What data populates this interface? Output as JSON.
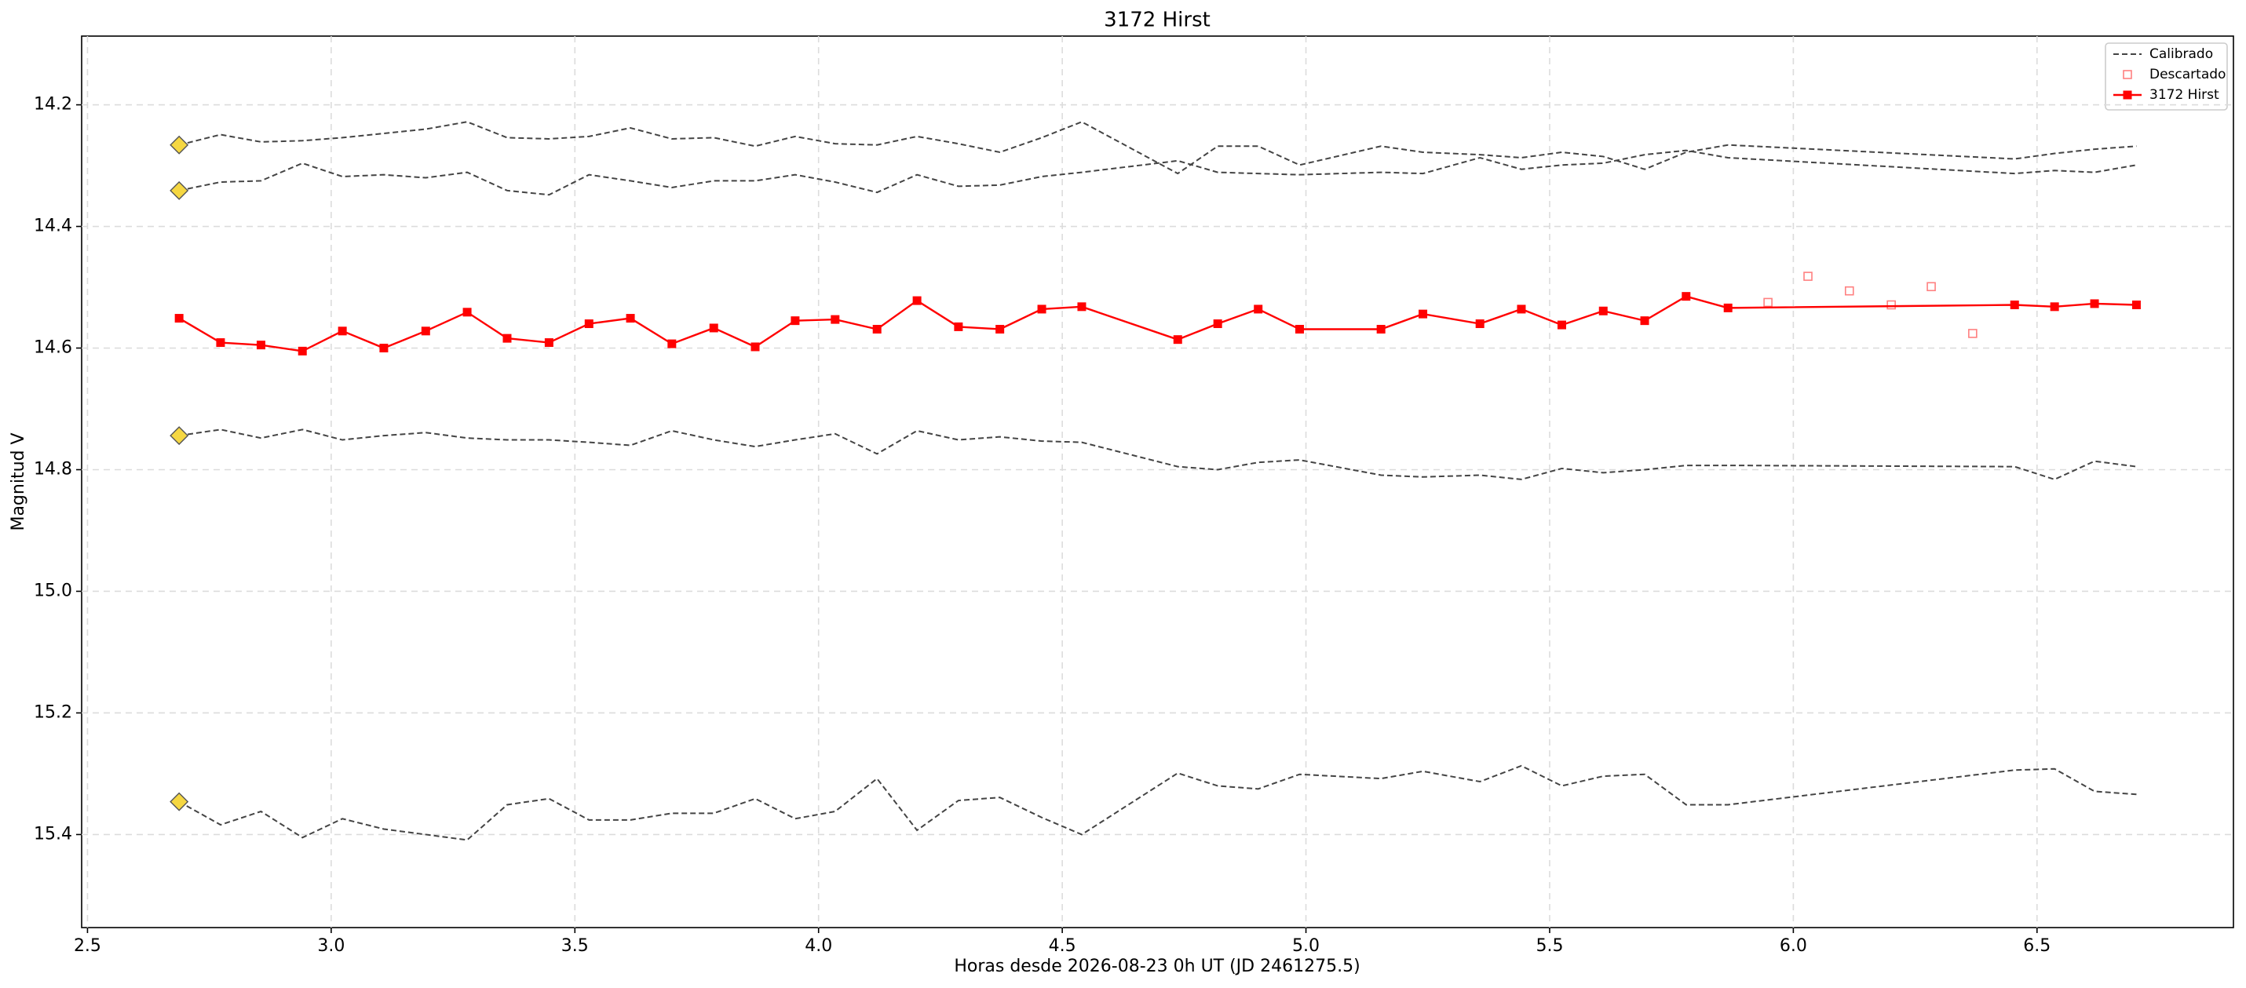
{
  "chart_data": {
    "type": "line",
    "title": "3172 Hirst",
    "x_label": "Horas desde 2026-08-23 0h UT (JD 2461275.5)",
    "y_label": "Magnitud V",
    "xlim": [
      2.488,
      6.903
    ],
    "ylim": [
      15.553,
      14.087
    ],
    "xticks": [
      2.5,
      {
        "value": 3.0,
        "label": "3.0"
      },
      3.5,
      {
        "value": 4.0,
        "label": "4.0"
      },
      4.5,
      {
        "value": 5.0,
        "label": "5.0"
      },
      5.5,
      {
        "value": 6.0,
        "label": "6.0"
      },
      6.5
    ],
    "yticks": [
      14.2,
      14.4,
      14.6,
      14.8,
      {
        "value": 15.0,
        "label": "15.0"
      },
      15.2,
      15.4
    ],
    "grid": true,
    "legend": "upper right",
    "start_marker_color": "#f5d742",
    "x": [
      2.688,
      2.773,
      2.856,
      2.941,
      3.023,
      3.108,
      3.194,
      3.279,
      3.361,
      3.447,
      3.529,
      3.614,
      3.699,
      3.785,
      3.87,
      3.952,
      4.034,
      4.12,
      4.202,
      4.287,
      4.372,
      4.458,
      4.54,
      4.737,
      4.819,
      4.902,
      4.987,
      5.154,
      5.24,
      5.357,
      5.442,
      5.525,
      5.61,
      5.695,
      5.78,
      5.866,
      6.454,
      6.536,
      6.618,
      6.704
    ],
    "series": [
      {
        "name": "Calibrado",
        "color": "#444444",
        "style": "dashed",
        "values": [
          [
            14.266,
            14.249,
            14.261,
            14.259,
            14.254,
            14.247,
            14.24,
            14.228,
            14.254,
            14.256,
            14.252,
            14.238,
            14.256,
            14.254,
            14.268,
            14.252,
            14.264,
            14.266,
            14.252,
            14.264,
            14.278,
            14.254,
            14.228,
            14.313,
            14.268,
            14.268,
            14.299,
            14.268,
            14.278,
            14.282,
            14.287,
            14.278,
            14.285,
            14.306,
            14.278,
            14.266,
            14.289,
            14.28,
            14.273,
            14.268
          ],
          [
            14.341,
            14.327,
            14.325,
            14.296,
            14.318,
            14.315,
            14.32,
            14.311,
            14.341,
            14.348,
            14.315,
            14.325,
            14.336,
            14.325,
            14.325,
            14.315,
            14.327,
            14.344,
            14.315,
            14.334,
            14.332,
            14.318,
            14.311,
            14.292,
            14.311,
            14.313,
            14.315,
            14.311,
            14.313,
            14.287,
            14.306,
            14.299,
            14.296,
            14.282,
            14.275,
            14.287,
            14.313,
            14.308,
            14.311,
            14.299
          ],
          [
            14.744,
            14.734,
            14.748,
            14.734,
            14.751,
            14.744,
            14.739,
            14.748,
            14.751,
            14.751,
            14.755,
            14.76,
            14.736,
            14.751,
            14.762,
            14.751,
            14.741,
            14.774,
            14.736,
            14.751,
            14.746,
            14.753,
            14.755,
            14.795,
            14.8,
            14.788,
            14.784,
            14.809,
            14.812,
            14.809,
            14.816,
            14.798,
            14.805,
            14.8,
            14.793,
            14.793,
            14.795,
            14.816,
            14.786,
            14.795
          ],
          [
            15.346,
            15.384,
            15.362,
            15.405,
            15.374,
            15.391,
            15.4,
            15.409,
            15.351,
            15.341,
            15.376,
            15.376,
            15.365,
            15.365,
            15.341,
            15.374,
            15.362,
            15.308,
            15.393,
            15.344,
            15.339,
            15.372,
            15.4,
            15.299,
            15.32,
            15.325,
            15.301,
            15.308,
            15.296,
            15.313,
            15.287,
            15.32,
            15.304,
            15.301,
            15.351,
            15.351,
            15.294,
            15.292,
            15.329,
            15.334
          ]
        ]
      },
      {
        "name": "Descartado",
        "color": "#ff8080",
        "style": "hollow-square",
        "x": [
          5.948,
          6.03,
          6.115,
          6.201,
          6.283,
          6.368
        ],
        "values": [
          14.525,
          14.482,
          14.506,
          14.529,
          14.499,
          14.576
        ]
      },
      {
        "name": "3172 Hirst",
        "color": "#ff0000",
        "style": "line-square",
        "values": [
          14.551,
          14.591,
          14.595,
          14.605,
          14.572,
          14.6,
          14.572,
          14.541,
          14.584,
          14.591,
          14.56,
          14.551,
          14.593,
          14.567,
          14.598,
          14.555,
          14.553,
          14.569,
          14.522,
          14.565,
          14.569,
          14.536,
          14.532,
          14.586,
          14.56,
          14.536,
          14.569,
          14.569,
          14.544,
          14.56,
          14.536,
          14.562,
          14.539,
          14.555,
          14.515,
          14.534,
          14.529,
          14.532,
          14.527,
          14.529
        ]
      }
    ]
  }
}
